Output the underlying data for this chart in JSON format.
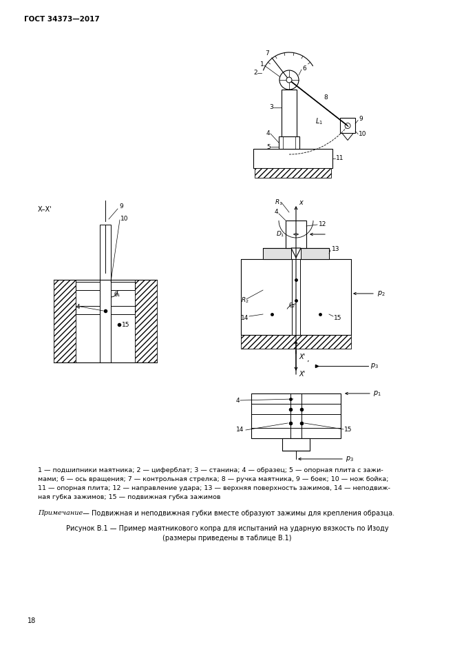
{
  "page_header": "ГОСТ 34373—2017",
  "page_number": "18",
  "figure_caption_line1": "Рисунок В.1 — Пример маятникового копра для испытаний на ударную вязкость по Изоду",
  "figure_caption_line2": "(размеры приведены в таблице В.1)",
  "legend_lines": [
    "1 — подшипники маятника; 2 — циферблат; 3 — станина; 4 — образец; 5 — опорная плита с зажи-",
    "мами; 6 — ось вращения; 7 — контрольная стрелка; 8 — ручка маятника, 9 — боек; 10 — нож бойка;",
    "11 — опорная плита; 12 — направление удара; 13 — верхняя поверхность зажимов, 14 — неподвиж-",
    "ная губка зажимов; 15 — подвижная губка зажимов"
  ],
  "note_label": "Примечание",
  "note_rest": " — Подвижная и неподвижная губки вместе образуют зажимы для крепления образца.",
  "bg_color": "#ffffff",
  "line_color": "#000000"
}
